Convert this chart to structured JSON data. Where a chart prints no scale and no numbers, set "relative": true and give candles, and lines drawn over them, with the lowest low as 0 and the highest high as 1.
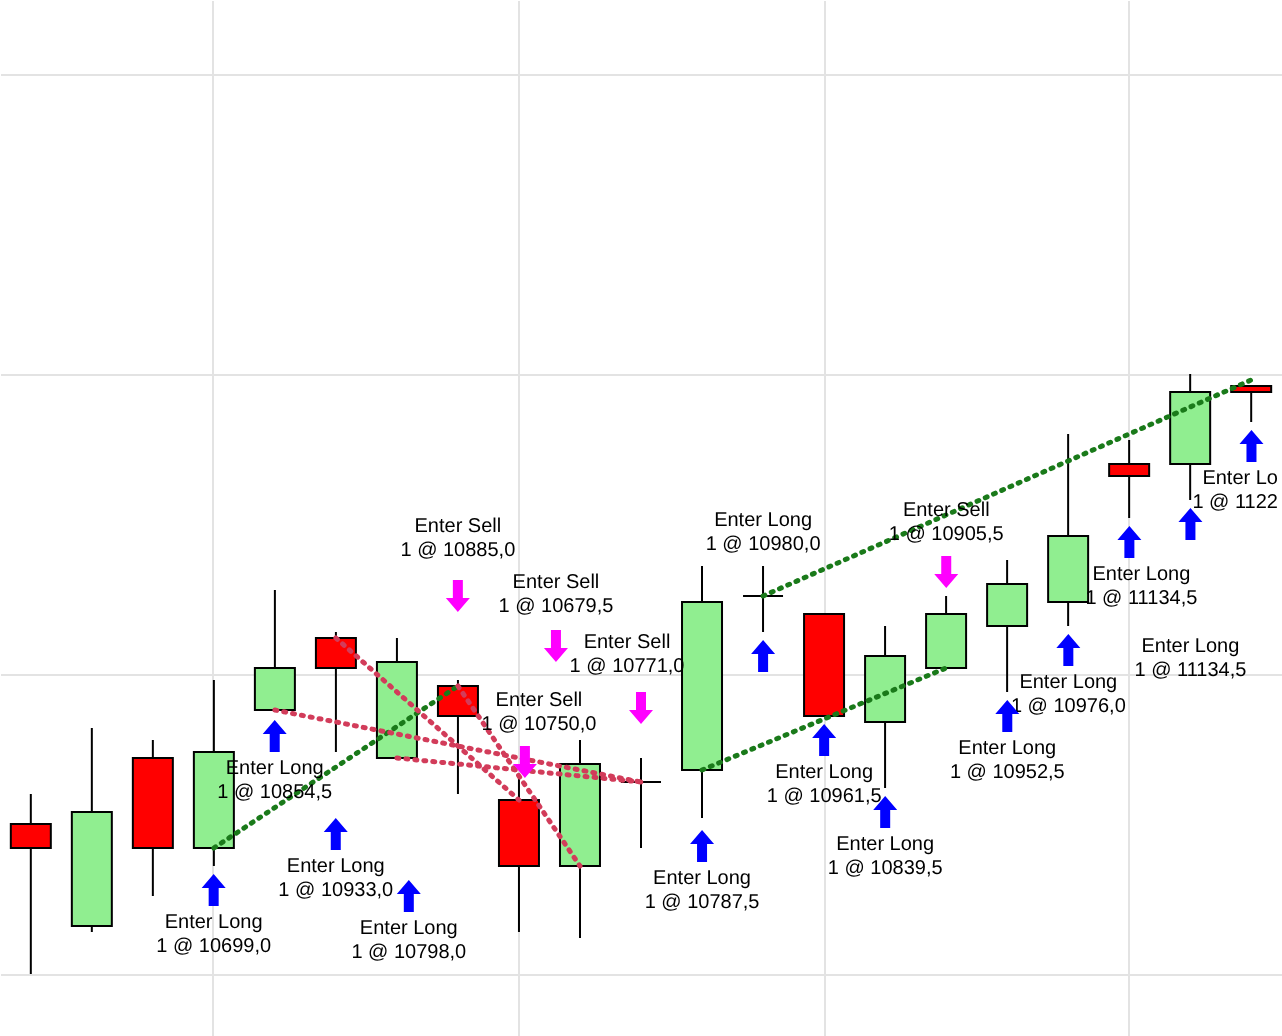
{
  "chart_data": {
    "type": "candlestick",
    "relative": true,
    "grid": true,
    "line_style": "dotted",
    "categories": [
      null,
      null,
      null,
      null,
      null,
      null,
      null,
      null,
      null,
      null,
      null,
      null,
      null,
      null,
      null,
      null,
      null,
      null,
      null,
      null,
      null
    ],
    "ohlc": [
      [
        0.25,
        0.3,
        0,
        0.21
      ],
      [
        0.08,
        0.41,
        0.07,
        0.27
      ],
      [
        0.36,
        0.39,
        0.13,
        0.21
      ],
      [
        0.21,
        0.49,
        0.18,
        0.37
      ],
      [
        0.44,
        0.64,
        0.44,
        0.51
      ],
      [
        0.56,
        0.57,
        0.37,
        0.51
      ],
      [
        0.36,
        0.56,
        0.36,
        0.52
      ],
      [
        0.48,
        0.49,
        0.3,
        0.43
      ],
      [
        0.29,
        0.33,
        0.07,
        0.18
      ],
      [
        0.18,
        0.39,
        0.06,
        0.35
      ],
      [
        0.32,
        0.36,
        0.21,
        0.32
      ],
      [
        0.34,
        0.68,
        0.26,
        0.62
      ],
      [
        0.63,
        0.68,
        0.57,
        0.63
      ],
      [
        0.6,
        0.6,
        0.43,
        0.43
      ],
      [
        0.42,
        0.58,
        0.31,
        0.53
      ],
      [
        0.51,
        0.63,
        0.51,
        0.6
      ],
      [
        0.58,
        0.69,
        0.47,
        0.65
      ],
      [
        0.62,
        0.9,
        0.58,
        0.73
      ],
      [
        0.85,
        0.89,
        0.76,
        0.83
      ],
      [
        0.85,
        1,
        0.79,
        0.97
      ],
      [
        0.98,
        0.98,
        0.92,
        0.97
      ]
    ],
    "series": [
      {
        "type": "line",
        "color": "#1a7a1a",
        "values": [
          null,
          null,
          null,
          0.21,
          null,
          null,
          null,
          0.48,
          null,
          null,
          null,
          null,
          null,
          null,
          null,
          null,
          null,
          null,
          null,
          null,
          null
        ]
      },
      {
        "type": "line",
        "color": "#d23c5a",
        "values": [
          null,
          null,
          null,
          null,
          null,
          0.56,
          null,
          null,
          0.29,
          null,
          null,
          null,
          null,
          null,
          null,
          null,
          null,
          null,
          null,
          null,
          null
        ]
      },
      {
        "type": "line",
        "color": "#d23c5a",
        "values": [
          null,
          null,
          null,
          null,
          0.44,
          null,
          null,
          null,
          null,
          null,
          0.32,
          null,
          null,
          null,
          null,
          null,
          null,
          null,
          null,
          null,
          null
        ]
      },
      {
        "type": "line",
        "color": "#d23c5a",
        "values": [
          null,
          null,
          null,
          null,
          null,
          null,
          0.36,
          null,
          null,
          null,
          0.32,
          null,
          null,
          null,
          null,
          null,
          null,
          null,
          null,
          null,
          null
        ]
      },
      {
        "type": "line",
        "color": "#d23c5a",
        "values": [
          null,
          null,
          null,
          null,
          null,
          null,
          null,
          0.48,
          null,
          0.18,
          null,
          null,
          null,
          null,
          null,
          null,
          null,
          null,
          null,
          null,
          null
        ]
      },
      {
        "type": "line",
        "color": "#1a7a1a",
        "values": [
          null,
          null,
          null,
          null,
          null,
          null,
          null,
          null,
          null,
          null,
          null,
          0.34,
          null,
          null,
          null,
          0.51,
          null,
          null,
          null,
          null,
          null
        ]
      },
      {
        "type": "line",
        "color": "#1a7a1a",
        "values": [
          null,
          null,
          null,
          null,
          null,
          null,
          null,
          null,
          null,
          null,
          null,
          null,
          0.63,
          null,
          null,
          null,
          null,
          null,
          null,
          null,
          0.99
        ]
      }
    ],
    "annotations": [
      "Enter Long\n1 @ 10699,0",
      "Enter Long\n1 @ 10854,5",
      "Enter Long\n1 @ 10933,0",
      "Enter Long\n1 @ 10798,0",
      "Enter Sell\n1 @ 10885,0",
      "Enter Sell\n1 @ 10750,0",
      "Enter Sell\n1 @ 10679,5",
      "Enter Sell\n1 @ 10771,0",
      "Enter Long\n1 @ 10787,5",
      "Enter Long\n1 @ 10980,0",
      "Enter Long\n1 @ 10961,5",
      "Enter Long\n1 @ 10839,5",
      "Enter Sell\n1 @ 10905,5",
      "Enter Long\n1 @ 10952,5",
      "Enter Long\n1 @ 10976,0",
      "Enter Long\n1 @ 11134,5",
      "Enter Long\n1 @ 11134,5",
      "Enter Lo\n1 @ 1122"
    ]
  }
}
